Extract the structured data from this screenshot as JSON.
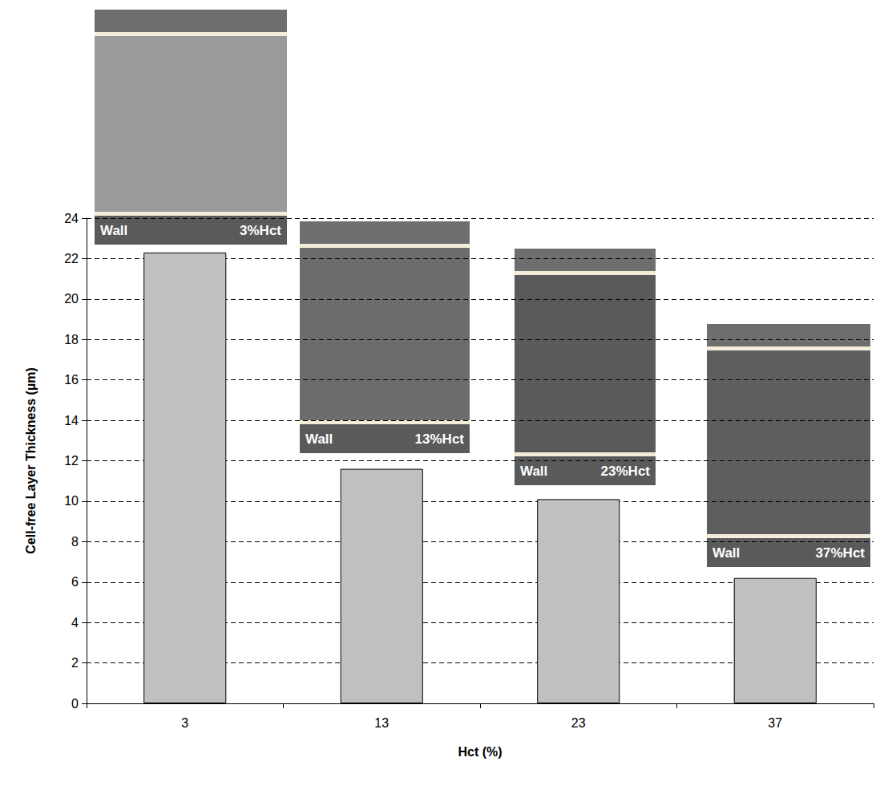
{
  "chart_data": {
    "type": "bar",
    "categories": [
      "3",
      "13",
      "23",
      "37"
    ],
    "values": [
      22.3,
      11.6,
      10.1,
      6.2
    ],
    "color": "#c0c0c0",
    "xlabel": "Hct (%)",
    "ylabel": "Cell-free Layer Thickness (µm)",
    "ylim": [
      0,
      24
    ],
    "yticks": [
      0,
      2,
      4,
      6,
      8,
      10,
      12,
      14,
      16,
      18,
      20,
      22,
      24
    ],
    "grid": true,
    "insets": [
      {
        "texts": [
          "Wall",
          "3%Hct"
        ]
      },
      {
        "texts": [
          "Wall",
          "13%Hct"
        ]
      },
      {
        "texts": [
          "Wall",
          "23%Hct"
        ]
      },
      {
        "texts": [
          "Wall",
          "37%Hct"
        ]
      }
    ]
  }
}
